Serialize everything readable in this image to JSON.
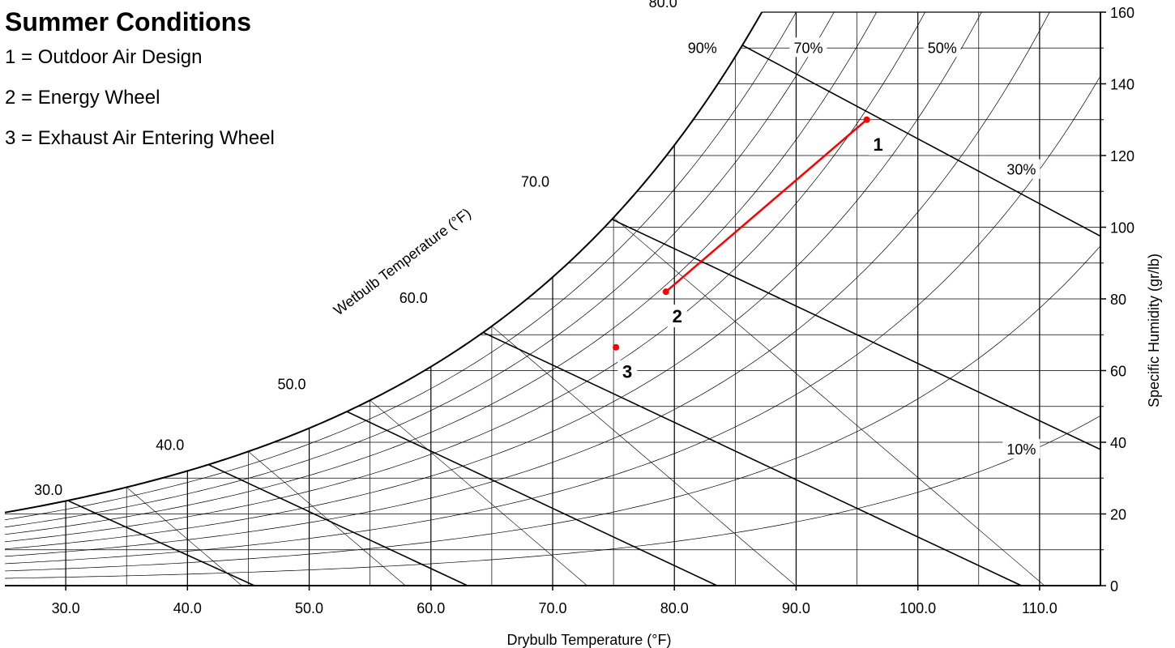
{
  "chart_data": {
    "type": "scatter",
    "title": "Summer Conditions",
    "legend": [
      "1 = Outdoor Air Design",
      "2 = Energy Wheel",
      "3 = Exhaust Air Entering Wheel"
    ],
    "xlabel": "Drybulb Temperature (°F)",
    "ylabel": "Specific Humidity (gr/lb)",
    "wetbulb_label": "Wetbulb Temperature (°F)",
    "xlim": [
      25,
      115
    ],
    "ylim": [
      0,
      160
    ],
    "x_ticks": [
      {
        "value": 30,
        "label": "30.0"
      },
      {
        "value": 40,
        "label": "40.0"
      },
      {
        "value": 50,
        "label": "50.0"
      },
      {
        "value": 60,
        "label": "60.0"
      },
      {
        "value": 70,
        "label": "70.0"
      },
      {
        "value": 80,
        "label": "80.0"
      },
      {
        "value": 90,
        "label": "90.0"
      },
      {
        "value": 100,
        "label": "100.0"
      },
      {
        "value": 110,
        "label": "110.0"
      }
    ],
    "y_ticks": [
      {
        "value": 0,
        "label": "0"
      },
      {
        "value": 20,
        "label": "20"
      },
      {
        "value": 40,
        "label": "40"
      },
      {
        "value": 60,
        "label": "60"
      },
      {
        "value": 80,
        "label": "80"
      },
      {
        "value": 100,
        "label": "100"
      },
      {
        "value": 120,
        "label": "120"
      },
      {
        "value": 140,
        "label": "140"
      },
      {
        "value": 160,
        "label": "160"
      }
    ],
    "wetbulb_lines": [
      {
        "label": "30.0",
        "sat_x": 30,
        "sat_y": 24,
        "end_x": 45.5
      },
      {
        "label": "40.0",
        "sat_x": 40,
        "sat_y": 36.5,
        "end_x": 63
      },
      {
        "label": "50.0",
        "sat_x": 50,
        "sat_y": 53.5,
        "end_x": 83.5
      },
      {
        "label": "60.0",
        "sat_x": 60,
        "sat_y": 77.5,
        "end_x": 108.5
      },
      {
        "label": "70.0",
        "sat_x": 70,
        "sat_y": 110,
        "end_x": 115,
        "end_y": 38
      },
      {
        "label": "80.0",
        "sat_x": 80.5,
        "sat_y": 160,
        "end_x": 115,
        "end_y": 97.5
      }
    ],
    "rh_labels": [
      {
        "label": "90%",
        "x": 82.3,
        "y": 150
      },
      {
        "label": "70%",
        "x": 91,
        "y": 150
      },
      {
        "label": "50%",
        "x": 102,
        "y": 150
      },
      {
        "label": "30%",
        "x": 108.5,
        "y": 116
      },
      {
        "label": "10%",
        "x": 108.5,
        "y": 38
      }
    ],
    "rh_curves": [
      100,
      90,
      80,
      70,
      60,
      50,
      40,
      30,
      20,
      10
    ],
    "points": [
      {
        "label": "1",
        "x": 95.8,
        "y": 130
      },
      {
        "label": "2",
        "x": 79.3,
        "y": 82
      },
      {
        "label": "3",
        "x": 75.2,
        "y": 66.5
      }
    ],
    "process_line": {
      "from": "2",
      "to": "1",
      "color": "#ff0000"
    },
    "point_color": "#ff0000",
    "grid": true
  }
}
